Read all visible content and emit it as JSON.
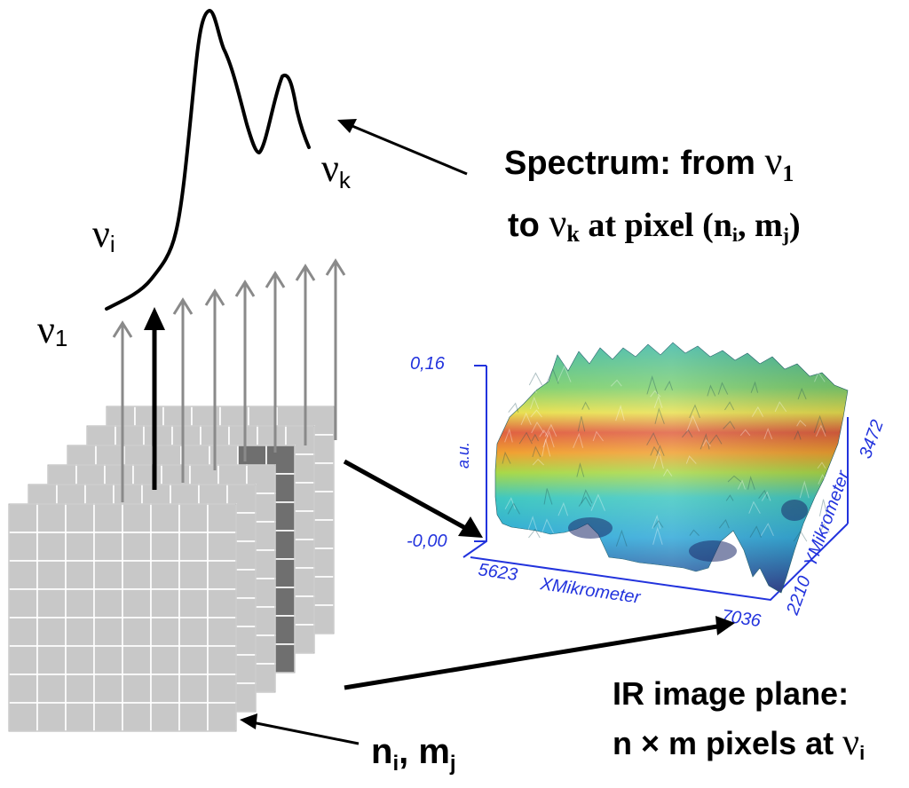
{
  "labels": {
    "nu_1": "ν",
    "nu_1_sub": "1",
    "nu_i": "ν",
    "nu_i_sub": "i",
    "nu_k": "ν",
    "nu_k_sub": "k",
    "spectrum_line1": "Spectrum: from ",
    "spectrum_line1_nu": "ν",
    "spectrum_line1_sub": "1",
    "spectrum_line2_a": "to ",
    "spectrum_line2_nu": "ν",
    "spectrum_line2_sub": "k",
    "spectrum_line2_b": " at pixel (n",
    "spectrum_line2_sub_i": "i",
    "spectrum_line2_c": ", m",
    "spectrum_line2_sub_j": "j",
    "spectrum_line2_d": ")",
    "pixel_label_n": "n",
    "pixel_label_sub_i": "i",
    "pixel_label_m": ", m",
    "pixel_label_sub_j": "j",
    "ir_line1": "IR image plane:",
    "ir_line2_a": "n × m pixels at ",
    "ir_line2_nu": "ν",
    "ir_line2_sub": "i"
  },
  "surface_plot": {
    "z_top": "0,16",
    "z_bottom": "-0,00",
    "z_label": "a.u.",
    "x_start": "5623",
    "x_end": "7036",
    "x_label": "XMikrometer",
    "y_start": "2210",
    "y_end": "3472",
    "y_label": "YMikrometer"
  },
  "colors": {
    "black": "#000000",
    "grid_light": "#c8c8c8",
    "grid_dark": "#6f6f6f",
    "arrow_gray": "#8a8a8a",
    "axis_blue": "#2233dd"
  }
}
